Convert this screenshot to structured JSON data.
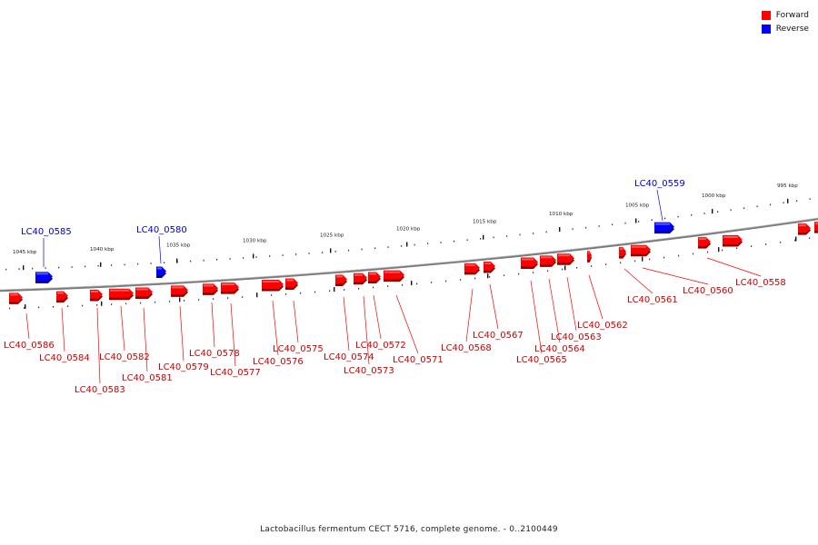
{
  "legend": {
    "forward_label": "Forward",
    "reverse_label": "Reverse",
    "forward_color": "#ff0000",
    "reverse_color": "#0000ff"
  },
  "caption": "Lactobacillus fermentum CECT 5716, complete genome. - 0..2100449",
  "ticks": [
    "1045 kbp",
    "1040 kbp",
    "1035 kbp",
    "1030 kbp",
    "1025 kbp",
    "1020 kbp",
    "1015 kbp",
    "1010 kbp",
    "1005 kbp",
    "1000 kbp",
    "995 kbp"
  ],
  "genes": [
    {
      "label": "LC40_0586",
      "strand": "forward"
    },
    {
      "label": "LC40_0585",
      "strand": "reverse"
    },
    {
      "label": "LC40_0584",
      "strand": "forward"
    },
    {
      "label": "LC40_0583",
      "strand": "forward"
    },
    {
      "label": "LC40_0582",
      "strand": "forward"
    },
    {
      "label": "LC40_0581",
      "strand": "forward"
    },
    {
      "label": "LC40_0580",
      "strand": "reverse"
    },
    {
      "label": "LC40_0579",
      "strand": "forward"
    },
    {
      "label": "LC40_0578",
      "strand": "forward"
    },
    {
      "label": "LC40_0577",
      "strand": "forward"
    },
    {
      "label": "LC40_0576",
      "strand": "forward"
    },
    {
      "label": "LC40_0575",
      "strand": "forward"
    },
    {
      "label": "LC40_0574",
      "strand": "forward"
    },
    {
      "label": "LC40_0573",
      "strand": "forward"
    },
    {
      "label": "LC40_0572",
      "strand": "forward"
    },
    {
      "label": "LC40_0571",
      "strand": "forward"
    },
    {
      "label": "LC40_0568",
      "strand": "forward"
    },
    {
      "label": "LC40_0567",
      "strand": "forward"
    },
    {
      "label": "LC40_0565",
      "strand": "forward"
    },
    {
      "label": "LC40_0564",
      "strand": "forward"
    },
    {
      "label": "LC40_0563",
      "strand": "forward"
    },
    {
      "label": "LC40_0562",
      "strand": "forward"
    },
    {
      "label": "LC40_0561",
      "strand": "forward"
    },
    {
      "label": "LC40_0560",
      "strand": "forward"
    },
    {
      "label": "LC40_0559",
      "strand": "reverse"
    },
    {
      "label": "LC40_0558",
      "strand": "forward"
    }
  ]
}
